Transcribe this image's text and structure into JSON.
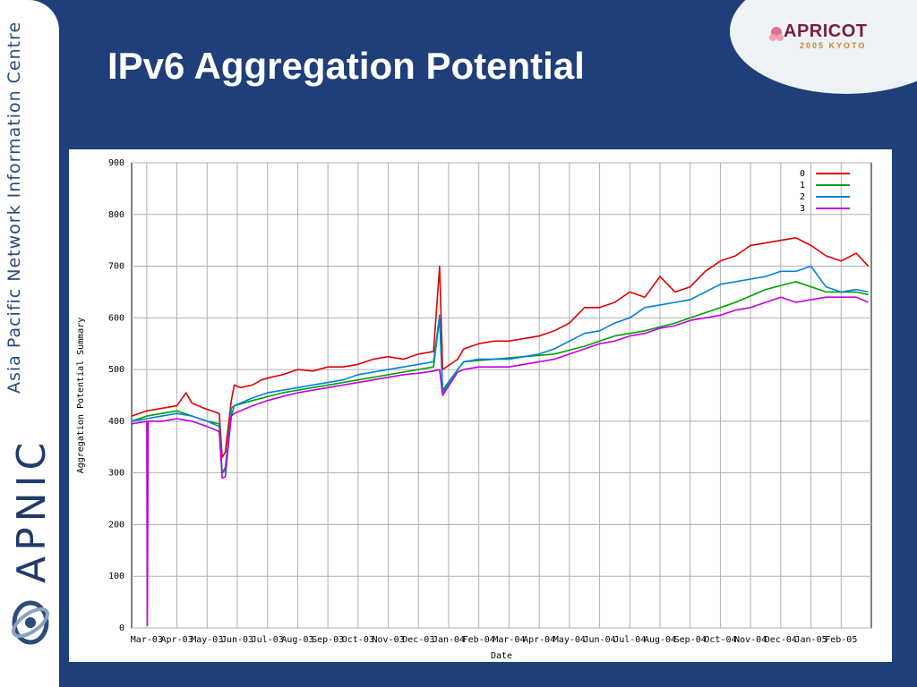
{
  "slide": {
    "title": "IPv6 Aggregation Potential",
    "sidebar_text": "Asia Pacific Network Information Centre",
    "sidebar_logo_text": "APNIC",
    "badge_name": "APRICOT",
    "badge_sub": "2005 KYOTO"
  },
  "colors": {
    "background": "#1f3f7a",
    "title": "#ffffff"
  },
  "chart_data": {
    "type": "line",
    "title": "",
    "xlabel": "Date",
    "ylabel": "Aggregation Potential Summary",
    "ylim": [
      0,
      900
    ],
    "yticks": [
      0,
      100,
      200,
      300,
      400,
      500,
      600,
      700,
      800,
      900
    ],
    "xticks": [
      "Mar-03",
      "Apr-03",
      "May-03",
      "Jun-03",
      "Jul-03",
      "Aug-03",
      "Sep-03",
      "Oct-03",
      "Nov-03",
      "Dec-03",
      "Jan-04",
      "Feb-04",
      "Mar-04",
      "Apr-04",
      "May-04",
      "Jun-04",
      "Jul-04",
      "Aug-04",
      "Sep-04",
      "Oct-04",
      "Nov-04",
      "Dec-04",
      "Jan-05",
      "Feb-05"
    ],
    "xlim": [
      0,
      24.5
    ],
    "grid": true,
    "legend_position": "top-right",
    "series": [
      {
        "name": "0",
        "color": "#e00000",
        "x": [
          0,
          0.5,
          1,
          1.5,
          1.8,
          2,
          2.4,
          2.9,
          3.0,
          3.1,
          3.3,
          3.4,
          3.6,
          4.0,
          4.3,
          4.6,
          5,
          5.5,
          6,
          6.5,
          7,
          7.5,
          8,
          8.5,
          9,
          9.5,
          10,
          10.2,
          10.3,
          10.8,
          11,
          11.5,
          12,
          12.5,
          13,
          13.5,
          14,
          14.5,
          15,
          15.5,
          16,
          16.5,
          17,
          17.5,
          18,
          18.5,
          19,
          19.5,
          20,
          20.5,
          21,
          21.5,
          22,
          22.5,
          23,
          23.5,
          24,
          24.4
        ],
        "y": [
          410,
          420,
          425,
          430,
          455,
          435,
          425,
          415,
          330,
          340,
          440,
          470,
          465,
          470,
          480,
          485,
          490,
          500,
          497,
          505,
          505,
          510,
          520,
          525,
          520,
          530,
          535,
          700,
          500,
          520,
          540,
          550,
          555,
          555,
          560,
          565,
          575,
          590,
          620,
          620,
          630,
          650,
          640,
          680,
          650,
          660,
          690,
          710,
          720,
          740,
          745,
          750,
          755,
          740,
          720,
          710,
          725,
          700
        ]
      },
      {
        "name": "1",
        "color": "#00a000",
        "x": [
          0,
          0.5,
          1,
          1.5,
          2,
          2.5,
          2.9,
          3.0,
          3.1,
          3.3,
          3.4,
          4,
          5,
          6,
          7,
          8,
          9,
          10,
          10.2,
          10.3,
          10.8,
          11,
          12,
          13,
          14,
          15,
          16,
          17,
          18,
          19,
          20,
          21,
          22,
          23,
          24,
          24.4
        ],
        "y": [
          400,
          410,
          415,
          420,
          410,
          400,
          395,
          300,
          310,
          410,
          430,
          440,
          455,
          465,
          475,
          485,
          495,
          505,
          600,
          460,
          500,
          515,
          520,
          525,
          530,
          545,
          565,
          575,
          590,
          610,
          630,
          655,
          670,
          650,
          650,
          645
        ]
      },
      {
        "name": "2",
        "color": "#0080e0",
        "x": [
          0,
          0.5,
          1,
          1.5,
          2,
          2.5,
          2.9,
          3.0,
          3.1,
          3.3,
          3.4,
          4,
          4.5,
          5,
          5.5,
          6,
          6.5,
          7,
          7.5,
          8,
          8.5,
          9,
          9.5,
          10,
          10.2,
          10.3,
          10.8,
          11,
          11.5,
          12,
          12.5,
          13,
          13.5,
          14,
          14.5,
          15,
          15.5,
          16,
          16.5,
          17,
          17.5,
          18,
          18.5,
          19,
          19.5,
          20,
          20.5,
          21,
          21.5,
          22,
          22.5,
          23,
          23.5,
          24,
          24.4
        ],
        "y": [
          400,
          405,
          410,
          415,
          410,
          400,
          390,
          300,
          305,
          425,
          430,
          445,
          455,
          460,
          465,
          470,
          475,
          480,
          490,
          495,
          500,
          505,
          510,
          515,
          605,
          455,
          500,
          515,
          520,
          520,
          520,
          525,
          530,
          540,
          555,
          570,
          575,
          590,
          600,
          620,
          625,
          630,
          635,
          650,
          665,
          670,
          675,
          680,
          690,
          690,
          700,
          660,
          650,
          655,
          650
        ]
      },
      {
        "name": "3",
        "color": "#c000e0",
        "x": [
          0,
          0.5,
          0.52,
          0.55,
          1,
          1.5,
          2,
          2.5,
          2.9,
          3.0,
          3.1,
          3.3,
          3.4,
          4,
          4.5,
          5,
          5.5,
          6,
          6.5,
          7,
          7.5,
          8,
          8.5,
          9,
          9.5,
          10,
          10.2,
          10.3,
          10.8,
          11,
          11.5,
          12,
          12.5,
          13,
          13.5,
          14,
          14.5,
          15,
          15.5,
          16,
          16.5,
          17,
          17.5,
          18,
          18.5,
          19,
          19.5,
          20,
          20.5,
          21,
          21.5,
          22,
          22.5,
          23,
          23.5,
          24,
          24.4
        ],
        "y": [
          395,
          400,
          5,
          400,
          400,
          405,
          400,
          390,
          380,
          290,
          292,
          410,
          415,
          430,
          440,
          448,
          455,
          460,
          465,
          470,
          475,
          480,
          485,
          490,
          493,
          497,
          500,
          450,
          495,
          500,
          505,
          505,
          505,
          510,
          515,
          520,
          530,
          540,
          550,
          555,
          565,
          570,
          580,
          585,
          595,
          600,
          605,
          615,
          620,
          630,
          640,
          630,
          635,
          640,
          640,
          640,
          630
        ]
      }
    ]
  }
}
